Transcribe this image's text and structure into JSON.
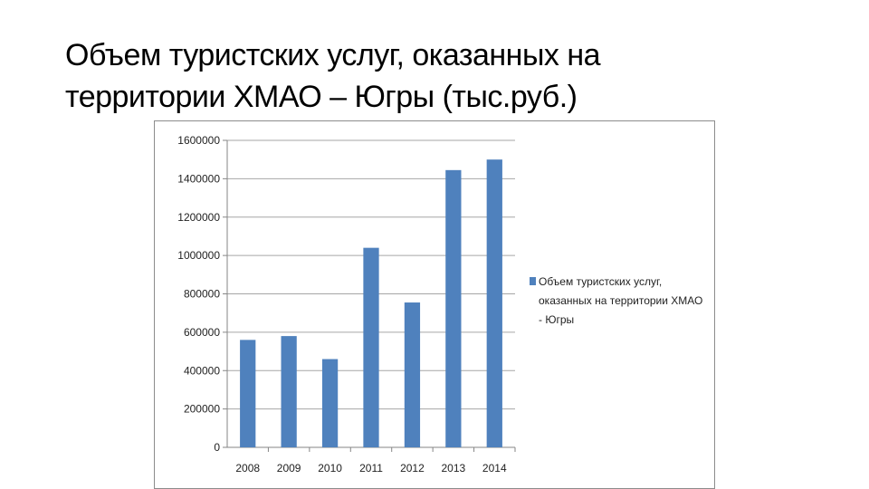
{
  "slide": {
    "title_line1": "Объем туристских услуг, оказанных на",
    "title_line2": "территории ХМАО – Югры (тыс.руб.)"
  },
  "colors": {
    "bar": "#4f81bd",
    "grid": "#a6a6a6",
    "axis": "#868686"
  },
  "chart_data": {
    "type": "bar",
    "categories": [
      "2008",
      "2009",
      "2010",
      "2011",
      "2012",
      "2013",
      "2014"
    ],
    "series": [
      {
        "name": "Объем туристских услуг, оказанных на территории ХМАО - Югры",
        "values": [
          560000,
          580000,
          460000,
          1040000,
          755000,
          1445000,
          1500000
        ]
      }
    ],
    "ylim": [
      0,
      1600000
    ],
    "yticks": [
      "0",
      "200000",
      "400000",
      "600000",
      "800000",
      "1000000",
      "1200000",
      "1400000",
      "1600000"
    ],
    "legend_lines": [
      "Объем туристских услуг,",
      "оказанных на территории ХМАО",
      "- Югры"
    ],
    "legend_position": "right",
    "grid": true
  }
}
